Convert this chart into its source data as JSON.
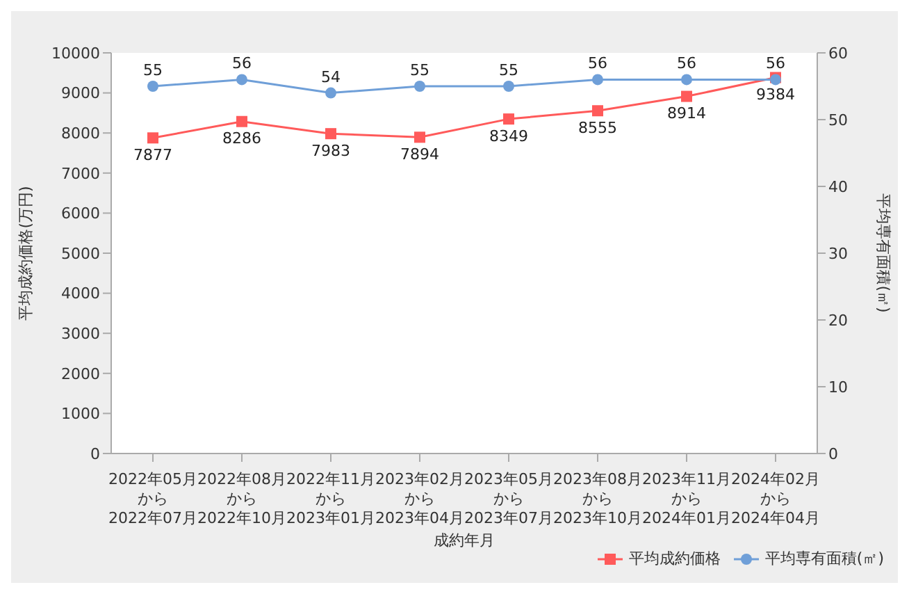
{
  "chart_data": {
    "type": "line",
    "xlabel": "成約年月",
    "ylabel": "平均成約価格(万円)",
    "y2label": "平均専有面積(㎡)",
    "categories": [
      "2022年05月から2022年07月",
      "2022年08月から2022年10月",
      "2022年11月から2023年01月",
      "2023年02月から2023年04月",
      "2023年05月から2023年07月",
      "2023年08月から2023年10月",
      "2023年11月から2024年01月",
      "2024年02月から2024年04月"
    ],
    "series": [
      {
        "name": "平均成約価格",
        "color": "#ff5a5a",
        "marker": "square",
        "values": [
          7877,
          8286,
          7983,
          7894,
          8349,
          8555,
          8914,
          9384
        ]
      },
      {
        "name": "平均専有面積(㎡)",
        "color": "#6f9fd8",
        "marker": "circle",
        "axis": "y2",
        "values": [
          55,
          56,
          54,
          55,
          55,
          56,
          56,
          56
        ]
      }
    ],
    "ylim": [
      0,
      10000
    ],
    "yticks": [
      0,
      1000,
      2000,
      3000,
      4000,
      5000,
      6000,
      7000,
      8000,
      9000,
      10000
    ],
    "y2lim": [
      0,
      60
    ],
    "y2ticks": [
      0,
      10,
      20,
      30,
      40,
      50,
      60
    ],
    "data_labels": true,
    "grid": false,
    "legend": "bottom right"
  }
}
